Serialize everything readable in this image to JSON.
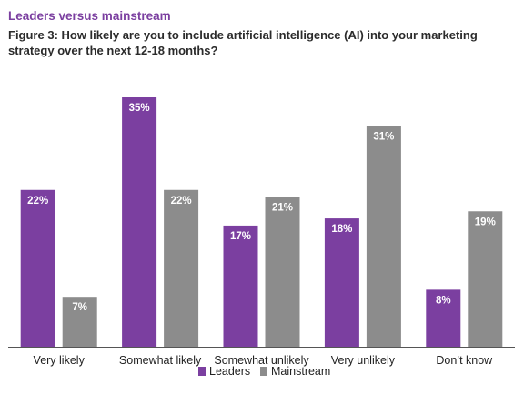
{
  "header": {
    "subtitle": "Leaders versus mainstream",
    "title": "Figure 3: How likely are you to include artificial intelligence (AI) into your marketing strategy over the next 12-18 months?"
  },
  "colors": {
    "leaders": "#7b3fa0",
    "mainstream": "#8c8c8c",
    "axis": "#555555",
    "label_on_bar": "#ffffff"
  },
  "chart_data": {
    "type": "bar",
    "title": "Figure 3: How likely are you to include artificial intelligence (AI) into your marketing strategy over the next 12-18 months?",
    "subtitle": "Leaders versus mainstream",
    "categories": [
      "Very likely",
      "Somewhat likely",
      "Somewhat unlikely",
      "Very unlikely",
      "Don’t know"
    ],
    "series": [
      {
        "name": "Leaders",
        "values": [
          22,
          35,
          17,
          18,
          8
        ],
        "labels": [
          "22%",
          "35%",
          "17%",
          "18%",
          "8%"
        ]
      },
      {
        "name": "Mainstream",
        "values": [
          7,
          22,
          21,
          31,
          19
        ],
        "labels": [
          "7%",
          "22%",
          "21%",
          "31%",
          "19%"
        ]
      }
    ],
    "ylim": [
      0,
      35
    ],
    "grid": false,
    "legend_position": "bottom"
  }
}
